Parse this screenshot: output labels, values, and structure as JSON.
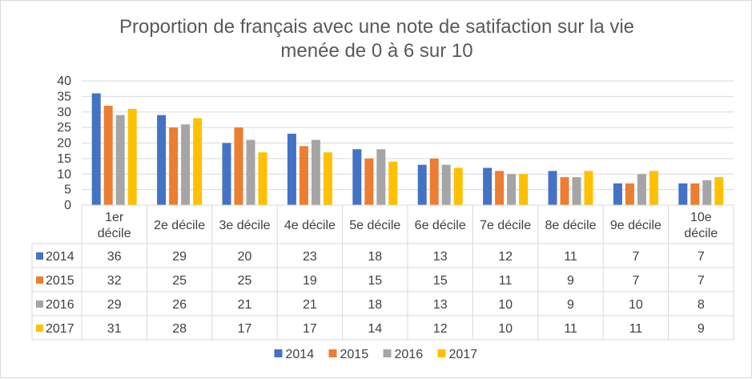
{
  "chart_data": {
    "type": "bar",
    "title_lines": [
      "Proportion de français avec une note de satifaction sur la vie",
      "menée de 0 à 6 sur 10"
    ],
    "categories": [
      [
        "1er",
        "décile"
      ],
      [
        "2e décile"
      ],
      [
        "3e décile"
      ],
      [
        "4e décile"
      ],
      [
        "5e décile"
      ],
      [
        "6e décile"
      ],
      [
        "7e décile"
      ],
      [
        "8e décile"
      ],
      [
        "9e décile"
      ],
      [
        "10e",
        "décile"
      ]
    ],
    "series": [
      {
        "name": "2014",
        "color": "#4472c4",
        "values": [
          36,
          29,
          20,
          23,
          18,
          13,
          12,
          11,
          7,
          7
        ]
      },
      {
        "name": "2015",
        "color": "#ed7d31",
        "values": [
          32,
          25,
          25,
          19,
          15,
          15,
          11,
          9,
          7,
          7
        ]
      },
      {
        "name": "2016",
        "color": "#a5a5a5",
        "values": [
          29,
          26,
          21,
          21,
          18,
          13,
          10,
          9,
          10,
          8
        ]
      },
      {
        "name": "2017",
        "color": "#ffc000",
        "values": [
          31,
          28,
          17,
          17,
          14,
          12,
          10,
          11,
          11,
          9
        ]
      }
    ],
    "ylim": [
      0,
      40
    ],
    "yticks": [
      0,
      5,
      10,
      15,
      20,
      25,
      30,
      35,
      40
    ],
    "grid": true,
    "legend": "bottom",
    "data_table": true
  }
}
